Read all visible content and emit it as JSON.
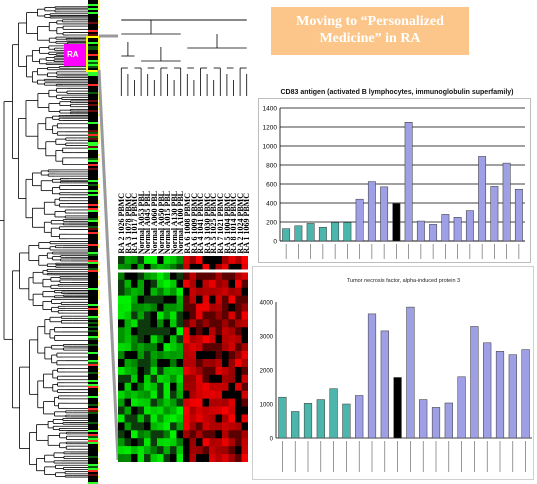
{
  "slide": {
    "title": "Moving to “Personalized Medicine” in RA",
    "magenta_label": "RA"
  },
  "heatmap_samples": [
    "RA 2 1026 PBMC",
    "RA 3 1078 PBMC",
    "RA 1 1017 PBMC",
    "Normal A053 PBL",
    "Normal A045 PBL",
    "Normal A060 PBL",
    "Normal A050 PBL",
    "Normal A015 PBL",
    "Normal A130 PBL",
    "Normal A100 PBL",
    "RA 6 1008 PBMC",
    "RA 6 1009 PBMC",
    "RA 4 1041 PBMC",
    "RA 3 1030 PBMC",
    "RA 5 1025 PBMC",
    "RA 7 1021 PBMC",
    "RA 5 1004 PBMC",
    "RA 8 1014 PBMC",
    "RA 2 1024 PBMC",
    "RA 1 1069 PBMC"
  ],
  "colors": {
    "normal_bar": "#4db6ac",
    "ra_bar": "#9f9fe6",
    "highlight_bar": "#000000",
    "heat_high": "#ff0000",
    "heat_low": "#00ff00",
    "title_box": "#fcc68a",
    "magenta": "#ff00ff"
  },
  "chart_data": [
    {
      "type": "bar",
      "title": "CD83 antigen (activated B lymphocytes, immunoglobulin superfamily)",
      "ylim": [
        0,
        1400
      ],
      "yticks": [
        0,
        200,
        400,
        600,
        800,
        1000,
        1200,
        1400
      ],
      "grid": "major gridlines",
      "values": [
        130,
        160,
        185,
        145,
        195,
        195,
        440,
        625,
        570,
        395,
        1250,
        210,
        175,
        280,
        250,
        320,
        890,
        575,
        820,
        545
      ],
      "bar_colors": [
        "normal",
        "normal",
        "normal",
        "normal",
        "normal",
        "normal",
        "ra",
        "ra",
        "ra",
        "highlight",
        "ra",
        "ra",
        "ra",
        "ra",
        "ra",
        "ra",
        "ra",
        "ra",
        "ra",
        "ra"
      ]
    },
    {
      "type": "bar",
      "title": "Tumor necrosis factor, alpha-induced protein 3",
      "ylim": [
        0,
        4000
      ],
      "yticks": [
        0,
        1000,
        2000,
        3000,
        4000
      ],
      "grid": "none",
      "values": [
        1200,
        780,
        1020,
        1130,
        1450,
        1000,
        1250,
        3650,
        3150,
        1780,
        3850,
        1130,
        900,
        1030,
        1800,
        3280,
        2800,
        2550,
        2450,
        2600
      ],
      "bar_colors": [
        "normal",
        "normal",
        "normal",
        "normal",
        "normal",
        "normal",
        "ra",
        "ra",
        "ra",
        "highlight",
        "ra",
        "ra",
        "ra",
        "ra",
        "ra",
        "ra",
        "ra",
        "ra",
        "ra",
        "ra"
      ]
    }
  ]
}
